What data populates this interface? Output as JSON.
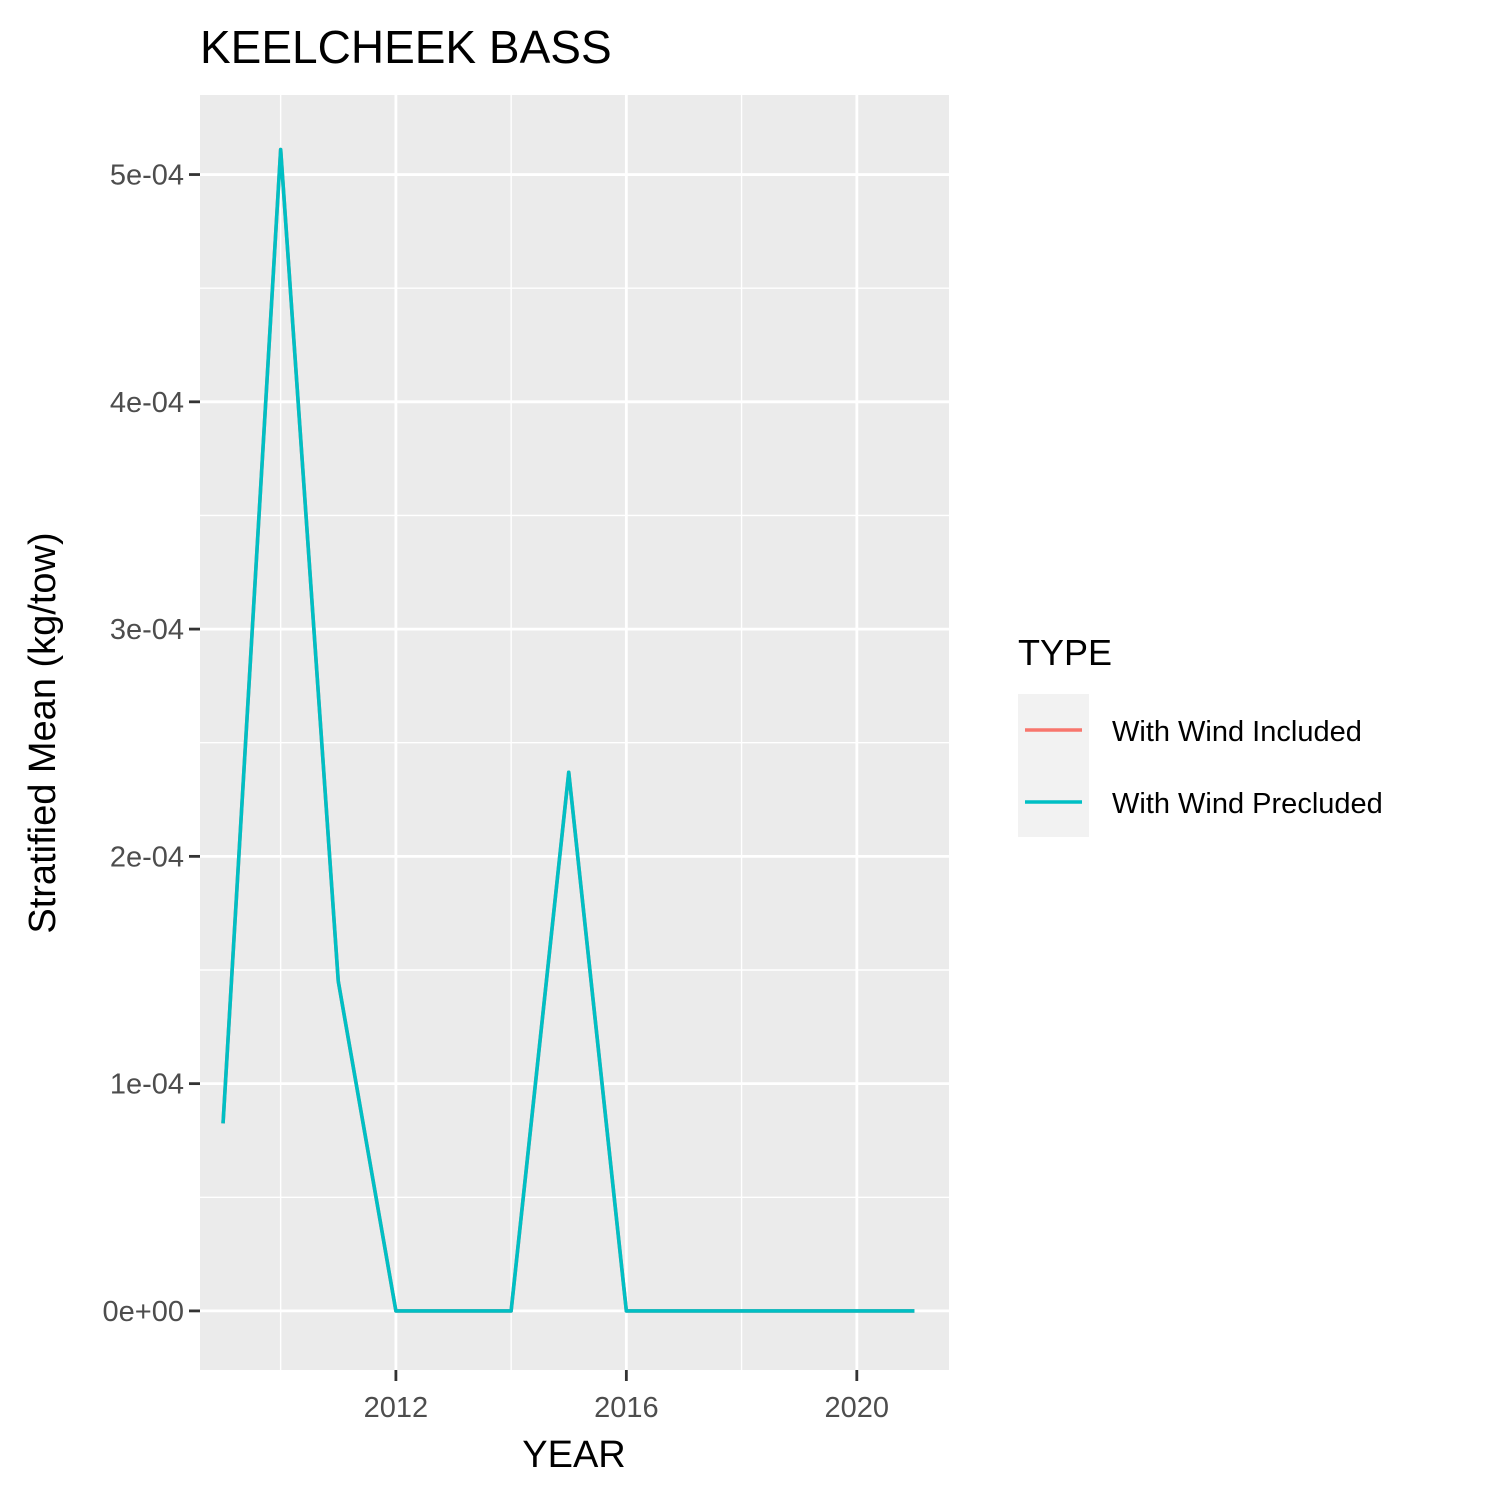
{
  "chart_data": {
    "type": "line",
    "title": "KEELCHEEK BASS",
    "xlabel": "YEAR",
    "ylabel": "Stratified Mean (kg/tow)",
    "xlim": [
      2008.6,
      2021.6
    ],
    "ylim": [
      -2.6e-05,
      0.000535
    ],
    "x_ticks": [
      2012,
      2016,
      2020
    ],
    "x_tick_labels": [
      "2012",
      "2016",
      "2020"
    ],
    "y_ticks": [
      0,
      0.0001,
      0.0002,
      0.0003,
      0.0004,
      0.0005
    ],
    "y_tick_labels": [
      "0e+00",
      "1e-04",
      "2e-04",
      "3e-04",
      "4e-04",
      "5e-04"
    ],
    "grid": true,
    "legend": {
      "title": "TYPE",
      "position": "right"
    },
    "x": [
      2009,
      2010,
      2011,
      2012,
      2013,
      2014,
      2015,
      2016,
      2017,
      2018,
      2019,
      2020,
      2021
    ],
    "series": [
      {
        "name": "With Wind Included",
        "color": "#F8766D",
        "values": [
          8.25e-05,
          0.000511,
          0.000145,
          0,
          0,
          0,
          0.000237,
          0,
          0,
          0,
          0,
          0,
          0
        ]
      },
      {
        "name": "With Wind Precluded",
        "color": "#00BFC4",
        "values": [
          8.25e-05,
          0.000511,
          0.000145,
          0,
          0,
          0,
          0.000237,
          0,
          0,
          0,
          0,
          0,
          0
        ]
      }
    ]
  }
}
